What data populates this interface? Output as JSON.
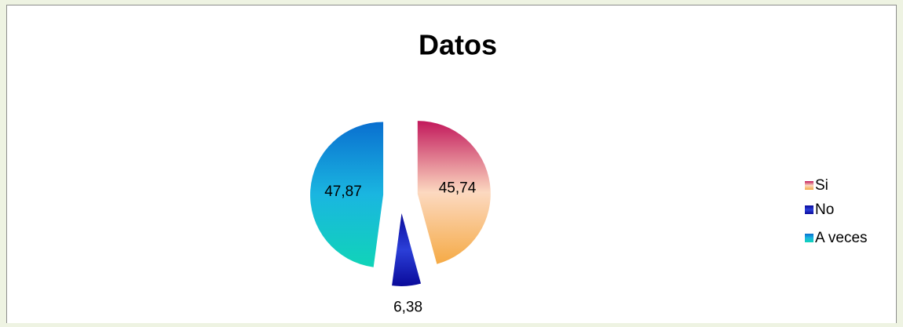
{
  "chart_data": {
    "type": "pie",
    "title": "Datos",
    "categories": [
      "Si",
      "No",
      "A veces"
    ],
    "values": [
      45.74,
      6.38,
      47.87
    ],
    "value_labels": [
      "45,74",
      "6,38",
      "47,87"
    ],
    "colors": [
      [
        "#c2185b",
        "#fcd9c0",
        "#f5aa45"
      ],
      [
        "#0a0a9a",
        "#2b3fd8",
        "#0a0a9a"
      ],
      [
        "#0a6fd0",
        "#1ab6e0",
        "#10d4b8"
      ]
    ],
    "exploded": true,
    "legend": "right"
  }
}
